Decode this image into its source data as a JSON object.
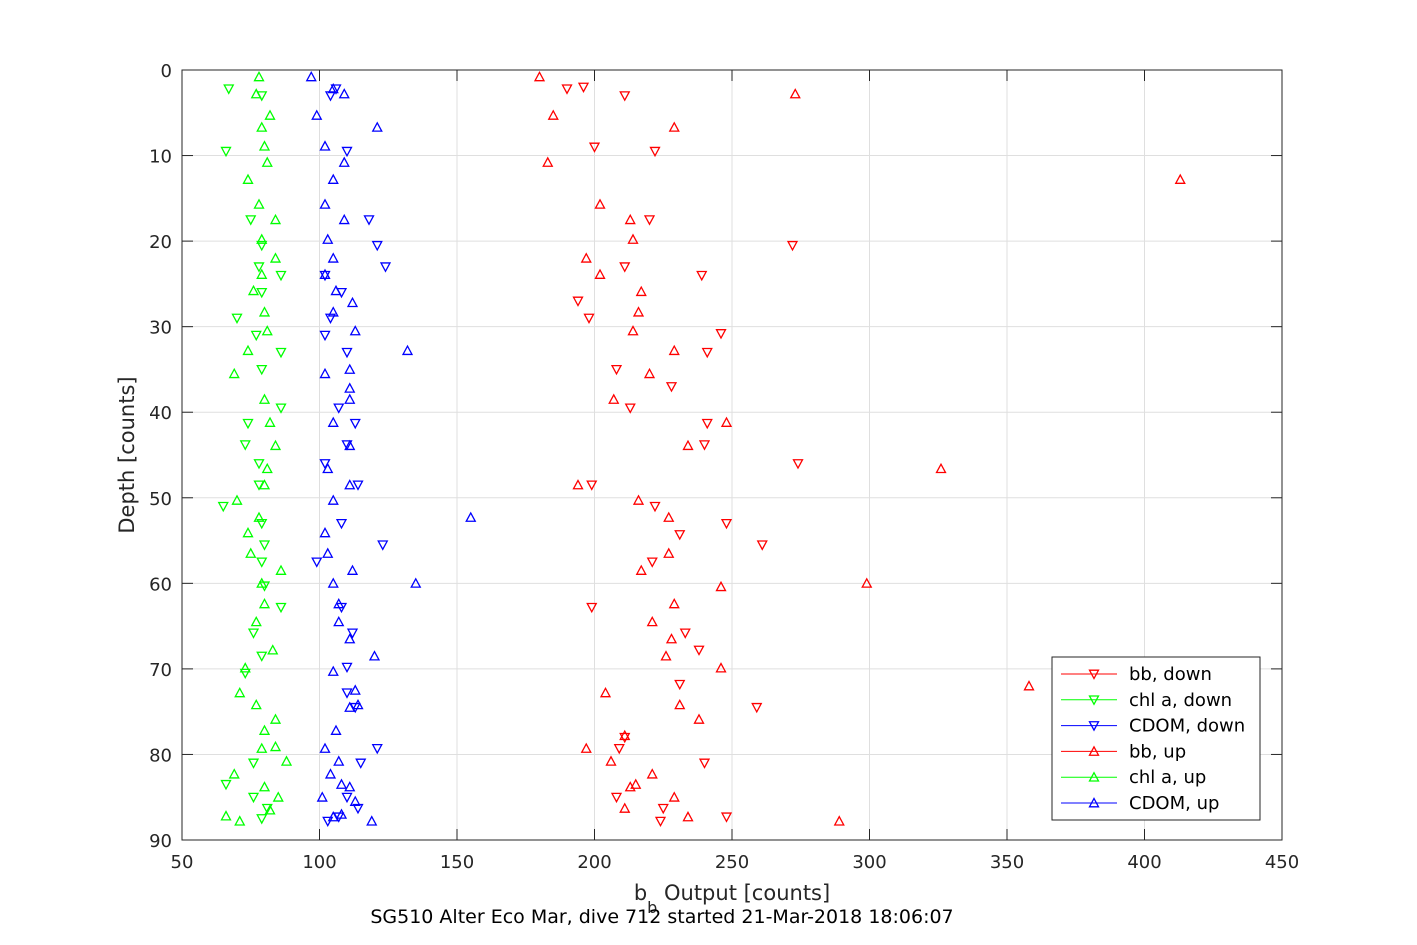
{
  "chart_data": {
    "type": "scatter",
    "xlabel_base": "b",
    "xlabel_sub": "b",
    "xlabel_rest": " Output [counts]",
    "ylabel": "Depth [counts]",
    "caption": "SG510 Alter Eco Mar, dive 712 started 21-Mar-2018 18:06:07",
    "xlim": [
      50,
      450
    ],
    "ylim": [
      0,
      90
    ],
    "y_reversed": true,
    "grid": true,
    "legend_position": "bottom-right",
    "xticks": [
      "50",
      "100",
      "150",
      "200",
      "250",
      "300",
      "350",
      "400",
      "450"
    ],
    "yticks": [
      "0",
      "10",
      "20",
      "30",
      "40",
      "50",
      "60",
      "70",
      "80",
      "90"
    ],
    "series": [
      {
        "name": "bb, down",
        "color": "#ff0000",
        "marker": "triangle-down",
        "points": [
          [
            190,
            2.2
          ],
          [
            196,
            2
          ],
          [
            211,
            3
          ],
          [
            200,
            9
          ],
          [
            222,
            9.5
          ],
          [
            220,
            17.5
          ],
          [
            272,
            20.5
          ],
          [
            211,
            23
          ],
          [
            239,
            24
          ],
          [
            194,
            27
          ],
          [
            198,
            29
          ],
          [
            246,
            30.8
          ],
          [
            241,
            33
          ],
          [
            208,
            35
          ],
          [
            228,
            37
          ],
          [
            213,
            39.5
          ],
          [
            241,
            41.3
          ],
          [
            240,
            43.8
          ],
          [
            274,
            46
          ],
          [
            199,
            48.5
          ],
          [
            222,
            51
          ],
          [
            248,
            53
          ],
          [
            231,
            54.3
          ],
          [
            261,
            55.5
          ],
          [
            221,
            57.5
          ],
          [
            199,
            62.8
          ],
          [
            233,
            65.8
          ],
          [
            238,
            67.8
          ],
          [
            231,
            71.8
          ],
          [
            259,
            74.5
          ],
          [
            211,
            78
          ],
          [
            209,
            79.3
          ],
          [
            240,
            81
          ],
          [
            208,
            85
          ],
          [
            225,
            86.3
          ],
          [
            224,
            87.8
          ],
          [
            248,
            87.3
          ]
        ]
      },
      {
        "name": "chl a, down",
        "color": "#00ff00",
        "marker": "triangle-down",
        "points": [
          [
            67,
            2.2
          ],
          [
            79,
            3
          ],
          [
            66,
            9.5
          ],
          [
            75,
            17.5
          ],
          [
            79,
            20.5
          ],
          [
            78,
            23
          ],
          [
            86,
            24
          ],
          [
            79,
            26
          ],
          [
            70,
            29
          ],
          [
            77,
            31
          ],
          [
            86,
            33
          ],
          [
            79,
            35
          ],
          [
            86,
            39.5
          ],
          [
            74,
            41.3
          ],
          [
            73,
            43.8
          ],
          [
            78,
            46
          ],
          [
            78,
            48.5
          ],
          [
            65,
            51
          ],
          [
            79,
            53
          ],
          [
            80,
            55.5
          ],
          [
            79,
            57.5
          ],
          [
            80,
            60.3
          ],
          [
            86,
            62.8
          ],
          [
            76,
            65.8
          ],
          [
            79,
            68.5
          ],
          [
            73,
            70.5
          ],
          [
            76,
            81
          ],
          [
            66,
            83.5
          ],
          [
            76,
            85
          ],
          [
            81,
            86.3
          ],
          [
            79,
            87.5
          ]
        ]
      },
      {
        "name": "CDOM, down",
        "color": "#0000ff",
        "marker": "triangle-down",
        "points": [
          [
            106,
            2.2
          ],
          [
            104,
            3
          ],
          [
            110,
            9.5
          ],
          [
            118,
            17.5
          ],
          [
            121,
            20.5
          ],
          [
            124,
            23
          ],
          [
            102,
            24
          ],
          [
            108,
            26
          ],
          [
            104,
            29
          ],
          [
            102,
            31
          ],
          [
            110,
            33
          ],
          [
            107,
            39.5
          ],
          [
            113,
            41.3
          ],
          [
            110,
            43.8
          ],
          [
            102,
            46
          ],
          [
            114,
            48.5
          ],
          [
            108,
            53
          ],
          [
            123,
            55.5
          ],
          [
            99,
            57.5
          ],
          [
            108,
            62.8
          ],
          [
            112,
            65.8
          ],
          [
            110,
            69.8
          ],
          [
            110,
            72.8
          ],
          [
            113,
            74.5
          ],
          [
            121,
            79.3
          ],
          [
            115,
            81
          ],
          [
            110,
            85
          ],
          [
            114,
            86.3
          ],
          [
            103,
            87.8
          ],
          [
            107,
            87.3
          ]
        ]
      },
      {
        "name": "bb, up",
        "color": "#ff0000",
        "marker": "triangle-up",
        "points": [
          [
            180,
            0.8
          ],
          [
            273,
            2.8
          ],
          [
            185,
            5.3
          ],
          [
            229,
            6.7
          ],
          [
            183,
            10.8
          ],
          [
            413,
            12.8
          ],
          [
            202,
            15.7
          ],
          [
            213,
            17.5
          ],
          [
            214,
            19.8
          ],
          [
            197,
            22
          ],
          [
            202,
            23.9
          ],
          [
            217,
            25.9
          ],
          [
            216,
            28.3
          ],
          [
            214,
            30.5
          ],
          [
            229,
            32.8
          ],
          [
            220,
            35.5
          ],
          [
            207,
            38.5
          ],
          [
            248,
            41.2
          ],
          [
            234,
            43.9
          ],
          [
            326,
            46.6
          ],
          [
            194,
            48.5
          ],
          [
            216,
            50.3
          ],
          [
            227,
            52.3
          ],
          [
            227,
            56.5
          ],
          [
            217,
            58.5
          ],
          [
            299,
            60
          ],
          [
            246,
            60.4
          ],
          [
            229,
            62.4
          ],
          [
            221,
            64.5
          ],
          [
            228,
            66.5
          ],
          [
            226,
            68.5
          ],
          [
            246,
            69.9
          ],
          [
            358,
            72
          ],
          [
            204,
            72.8
          ],
          [
            231,
            74.2
          ],
          [
            238,
            75.9
          ],
          [
            211,
            77.8
          ],
          [
            197,
            79.3
          ],
          [
            206,
            80.8
          ],
          [
            221,
            82.3
          ],
          [
            215,
            83.5
          ],
          [
            213,
            83.8
          ],
          [
            229,
            85
          ],
          [
            211,
            86.3
          ],
          [
            234,
            87.3
          ],
          [
            289,
            87.8
          ]
        ]
      },
      {
        "name": "chl a, up",
        "color": "#00ff00",
        "marker": "triangle-up",
        "points": [
          [
            78,
            0.8
          ],
          [
            77,
            2.8
          ],
          [
            82,
            5.3
          ],
          [
            79,
            6.7
          ],
          [
            80,
            8.9
          ],
          [
            81,
            10.8
          ],
          [
            74,
            12.8
          ],
          [
            78,
            15.7
          ],
          [
            84,
            17.5
          ],
          [
            79,
            19.8
          ],
          [
            84,
            22
          ],
          [
            79,
            23.9
          ],
          [
            76,
            25.8
          ],
          [
            80,
            28.3
          ],
          [
            81,
            30.5
          ],
          [
            74,
            32.8
          ],
          [
            69,
            35.5
          ],
          [
            80,
            38.5
          ],
          [
            82,
            41.2
          ],
          [
            84,
            43.9
          ],
          [
            81,
            46.6
          ],
          [
            80,
            48.5
          ],
          [
            70,
            50.3
          ],
          [
            78,
            52.3
          ],
          [
            74,
            54.1
          ],
          [
            75,
            56.5
          ],
          [
            86,
            58.5
          ],
          [
            79,
            60
          ],
          [
            80,
            62.4
          ],
          [
            77,
            64.5
          ],
          [
            83,
            67.8
          ],
          [
            73,
            69.9
          ],
          [
            71,
            72.8
          ],
          [
            77,
            74.2
          ],
          [
            84,
            75.9
          ],
          [
            80,
            77.2
          ],
          [
            79,
            79.3
          ],
          [
            84,
            79.1
          ],
          [
            88,
            80.8
          ],
          [
            69,
            82.3
          ],
          [
            80,
            83.8
          ],
          [
            85,
            85
          ],
          [
            82,
            86.5
          ],
          [
            66,
            87.2
          ],
          [
            71,
            87.8
          ]
        ]
      },
      {
        "name": "CDOM, up",
        "color": "#0000ff",
        "marker": "triangle-up",
        "points": [
          [
            97,
            0.8
          ],
          [
            105,
            2.2
          ],
          [
            109,
            2.8
          ],
          [
            99,
            5.3
          ],
          [
            121,
            6.7
          ],
          [
            102,
            8.9
          ],
          [
            109,
            10.8
          ],
          [
            105,
            12.8
          ],
          [
            102,
            15.7
          ],
          [
            109,
            17.5
          ],
          [
            103,
            19.8
          ],
          [
            105,
            22
          ],
          [
            102,
            23.9
          ],
          [
            106,
            25.8
          ],
          [
            112,
            27.2
          ],
          [
            105,
            28.3
          ],
          [
            113,
            30.5
          ],
          [
            132,
            32.8
          ],
          [
            111,
            35
          ],
          [
            102,
            35.5
          ],
          [
            111,
            37.2
          ],
          [
            111,
            38.5
          ],
          [
            105,
            41.2
          ],
          [
            111,
            43.9
          ],
          [
            103,
            46.6
          ],
          [
            111,
            48.5
          ],
          [
            105,
            50.3
          ],
          [
            155,
            52.3
          ],
          [
            102,
            54.1
          ],
          [
            103,
            56.5
          ],
          [
            112,
            58.5
          ],
          [
            105,
            60
          ],
          [
            135,
            60
          ],
          [
            107,
            62.4
          ],
          [
            107,
            64.5
          ],
          [
            111,
            66.5
          ],
          [
            120,
            68.5
          ],
          [
            105,
            70.3
          ],
          [
            113,
            72.5
          ],
          [
            111,
            74.5
          ],
          [
            114,
            74.2
          ],
          [
            106,
            77.2
          ],
          [
            102,
            79.3
          ],
          [
            107,
            80.8
          ],
          [
            104,
            82.3
          ],
          [
            108,
            83.5
          ],
          [
            111,
            83.8
          ],
          [
            101,
            85
          ],
          [
            113,
            85.5
          ],
          [
            108,
            87
          ],
          [
            105,
            87.3
          ],
          [
            119,
            87.8
          ]
        ]
      }
    ]
  }
}
